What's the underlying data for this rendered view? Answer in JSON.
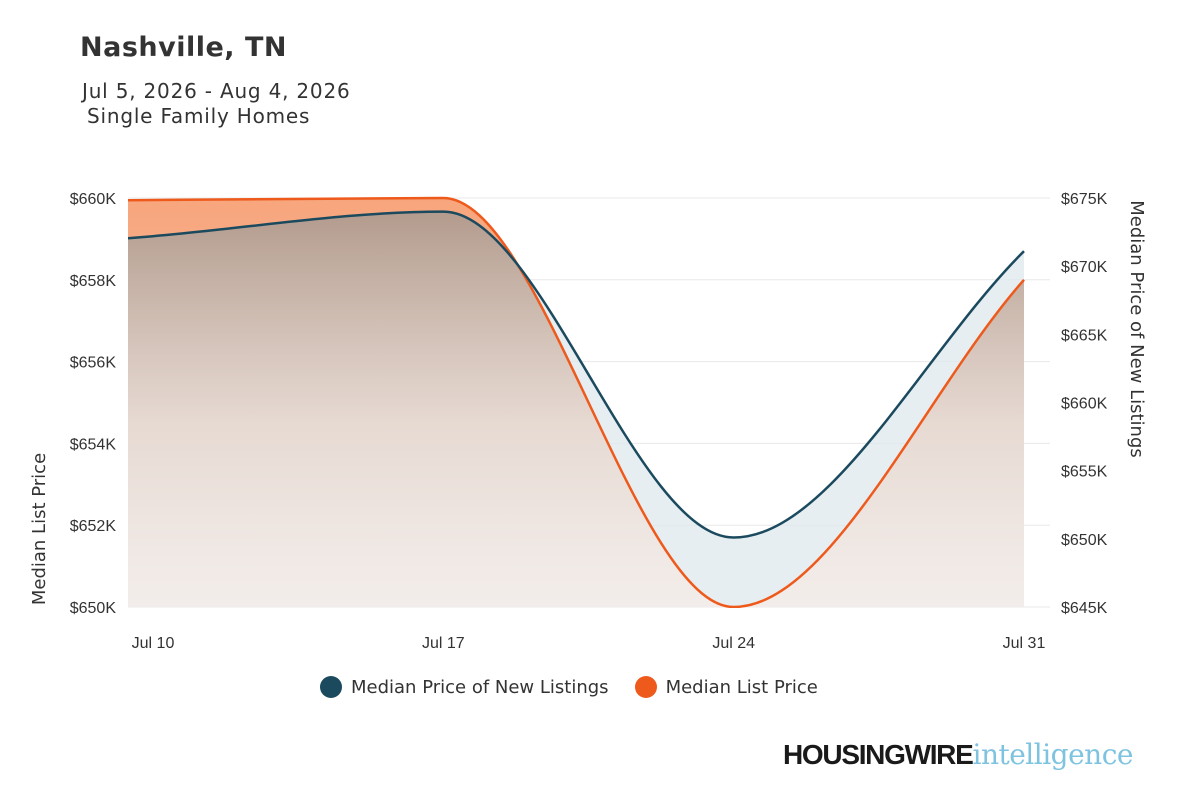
{
  "header": {
    "title": "Nashville, TN",
    "date_range": "Jul 5, 2026 - Aug 4, 2026",
    "segment": "Single Family Homes"
  },
  "colors": {
    "new_listings": "#1b4a5f",
    "list_price": "#ee5a1c",
    "gridline": "#e8e8e8"
  },
  "chart_data": {
    "type": "line",
    "x_ticks": [
      "Jul 10",
      "Jul 17",
      "Jul 24",
      "Jul 31"
    ],
    "x_dates": [
      "2026-07-10",
      "2026-07-17",
      "2026-07-24",
      "2026-07-31"
    ],
    "y_left_label": "Median List Price",
    "y_left_ticks": [
      "$650K",
      "$652K",
      "$654K",
      "$656K",
      "$658K",
      "$660K"
    ],
    "y_left_range": [
      650000,
      660000
    ],
    "y_right_label": "Median Price of New Listings",
    "y_right_ticks": [
      "$645K",
      "$650K",
      "$655K",
      "$660K",
      "$665K",
      "$670K",
      "$675K"
    ],
    "y_right_range": [
      645000,
      675000
    ],
    "series": [
      {
        "name": "Median Price of New Listings",
        "axis": "right",
        "color": "#1b4a5f",
        "points": [
          [
            "2026-07-10",
            672200
          ],
          [
            "2026-07-17",
            674000
          ],
          [
            "2026-07-24",
            650100
          ],
          [
            "2026-07-31",
            671100
          ]
        ]
      },
      {
        "name": "Median List Price",
        "axis": "left",
        "color": "#ee5a1c",
        "points": [
          [
            "2026-07-10",
            659950
          ],
          [
            "2026-07-17",
            660000
          ],
          [
            "2026-07-24",
            650000
          ],
          [
            "2026-07-31",
            658000
          ]
        ]
      }
    ],
    "grid": true,
    "legend_position": "bottom"
  },
  "brand": {
    "part1": "HOUSINGWIRE",
    "part2": "intelligence"
  }
}
